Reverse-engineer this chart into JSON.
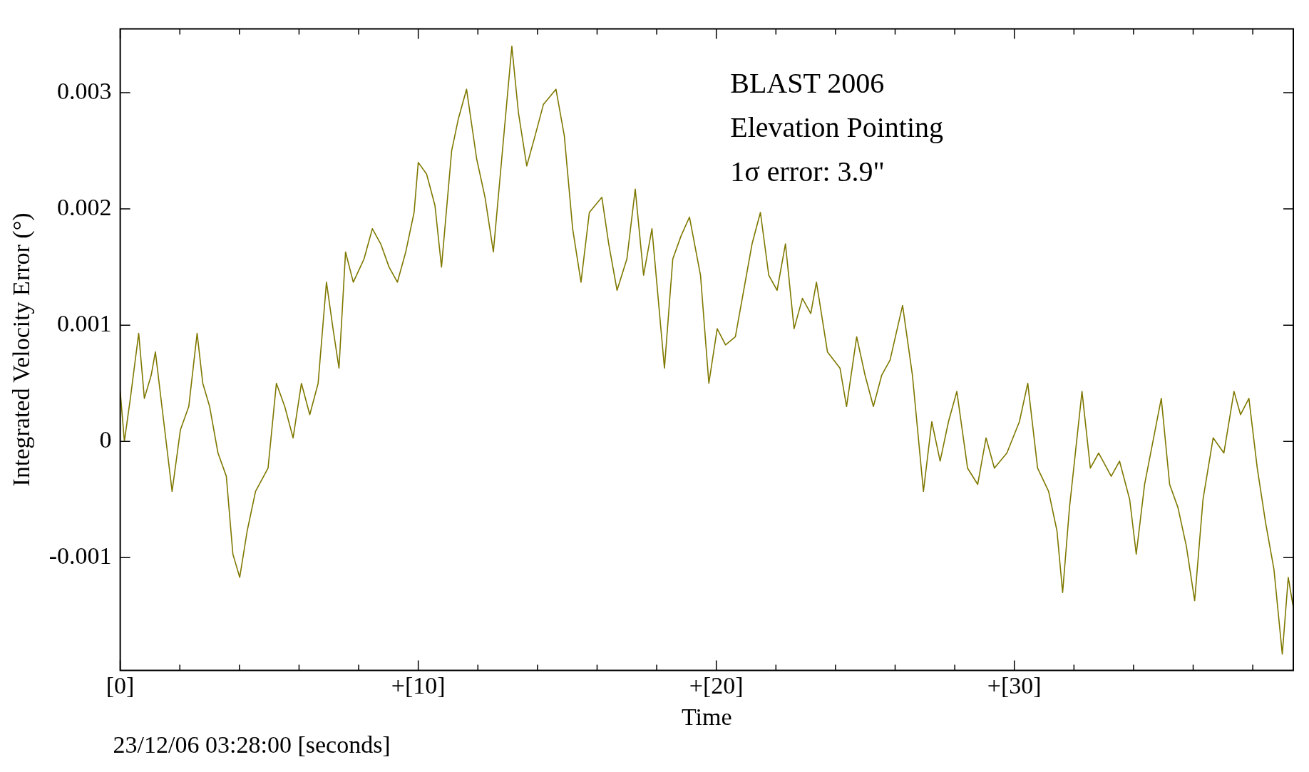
{
  "chart_data": {
    "type": "line",
    "xlabel": "Time",
    "ylabel": "Integrated Velocity Error (°)",
    "annotations": [
      "BLAST 2006",
      "Elevation Pointing",
      "1σ error: 3.9\"",
      "23/12/06 03:28:00 [seconds]"
    ],
    "xlim": [
      0,
      39.36
    ],
    "ylim": [
      -0.00197,
      0.00355
    ],
    "xticks": [
      {
        "value": 0,
        "label": "[0]"
      },
      {
        "value": 2,
        "label": null
      },
      {
        "value": 4,
        "label": null
      },
      {
        "value": 6,
        "label": null
      },
      {
        "value": 8,
        "label": null
      },
      {
        "value": 10,
        "label": "+[10]"
      },
      {
        "value": 12,
        "label": null
      },
      {
        "value": 14,
        "label": null
      },
      {
        "value": 16,
        "label": null
      },
      {
        "value": 18,
        "label": null
      },
      {
        "value": 20,
        "label": "+[20]"
      },
      {
        "value": 22,
        "label": null
      },
      {
        "value": 24,
        "label": null
      },
      {
        "value": 26,
        "label": null
      },
      {
        "value": 28,
        "label": null
      },
      {
        "value": 30,
        "label": "+[30]"
      },
      {
        "value": 32,
        "label": null
      },
      {
        "value": 34,
        "label": null
      },
      {
        "value": 36,
        "label": null
      },
      {
        "value": 38,
        "label": null
      }
    ],
    "yticks": [
      -0.001,
      0,
      0.001,
      0.002,
      0.003
    ],
    "grid": false,
    "legend": false,
    "marker": "none",
    "line_style": "solid",
    "series": [
      {
        "color": "#7f7800",
        "x": [
          0,
          0.14,
          0.34,
          0.62,
          0.81,
          1.04,
          1.18,
          1.46,
          1.74,
          2.02,
          2.3,
          2.58,
          2.77,
          3.0,
          3.28,
          3.56,
          3.78,
          4.01,
          4.26,
          4.54,
          4.96,
          5.24,
          5.52,
          5.8,
          6.08,
          6.36,
          6.64,
          6.92,
          7.14,
          7.34,
          7.56,
          7.82,
          8.18,
          8.46,
          8.74,
          9.02,
          9.3,
          9.58,
          9.86,
          10.0,
          10.28,
          10.56,
          10.78,
          11.12,
          11.34,
          11.62,
          11.96,
          12.24,
          12.52,
          12.8,
          13.14,
          13.36,
          13.64,
          13.92,
          14.2,
          14.62,
          14.9,
          15.18,
          15.46,
          15.74,
          16.16,
          16.39,
          16.67,
          17.0,
          17.28,
          17.56,
          17.84,
          18.26,
          18.54,
          18.82,
          19.1,
          19.47,
          19.75,
          20.03,
          20.31,
          20.64,
          20.92,
          21.2,
          21.48,
          21.76,
          22.04,
          22.32,
          22.61,
          22.89,
          23.17,
          23.36,
          23.73,
          24.15,
          24.37,
          24.71,
          24.99,
          25.27,
          25.55,
          25.83,
          26.25,
          26.58,
          26.95,
          27.23,
          27.51,
          27.79,
          28.07,
          28.43,
          28.77,
          29.05,
          29.33,
          29.75,
          30.17,
          30.45,
          30.78,
          31.15,
          31.43,
          31.62,
          31.85,
          32.27,
          32.55,
          32.83,
          33.25,
          33.53,
          33.87,
          34.09,
          34.37,
          34.93,
          35.21,
          35.49,
          35.77,
          36.05,
          36.33,
          36.67,
          37.03,
          37.37,
          37.59,
          37.87,
          38.15,
          38.43,
          38.71,
          38.99,
          39.19,
          39.36
        ],
        "values": [
          0.00043,
          0,
          0.00037,
          0.00093,
          0.00037,
          0.00057,
          0.00077,
          0.00017,
          -0.00043,
          0.0001,
          0.0003,
          0.00093,
          0.0005,
          0.0003,
          -0.0001,
          -0.0003,
          -0.00097,
          -0.00117,
          -0.00077,
          -0.00043,
          -0.00023,
          0.0005,
          0.0003,
          3e-05,
          0.0005,
          0.00023,
          0.0005,
          0.00137,
          0.00097,
          0.00063,
          0.00163,
          0.00137,
          0.00157,
          0.00183,
          0.0017,
          0.0015,
          0.00137,
          0.00163,
          0.00197,
          0.0024,
          0.0023,
          0.00203,
          0.0015,
          0.0025,
          0.00277,
          0.00303,
          0.00243,
          0.0021,
          0.00163,
          0.00243,
          0.0034,
          0.00283,
          0.00237,
          0.00263,
          0.0029,
          0.00303,
          0.00263,
          0.00183,
          0.00137,
          0.00197,
          0.0021,
          0.0017,
          0.0013,
          0.00157,
          0.00217,
          0.00143,
          0.00183,
          0.00063,
          0.00157,
          0.00177,
          0.00193,
          0.00143,
          0.0005,
          0.00097,
          0.00083,
          0.0009,
          0.0013,
          0.0017,
          0.00197,
          0.00143,
          0.0013,
          0.0017,
          0.00097,
          0.00123,
          0.0011,
          0.00137,
          0.00077,
          0.00063,
          0.0003,
          0.0009,
          0.00057,
          0.0003,
          0.00057,
          0.0007,
          0.00117,
          0.00057,
          -0.00043,
          0.00017,
          -0.00017,
          0.00017,
          0.00043,
          -0.00023,
          -0.00037,
          3e-05,
          -0.00023,
          -0.0001,
          0.00017,
          0.0005,
          -0.00023,
          -0.00043,
          -0.00077,
          -0.0013,
          -0.00057,
          0.00043,
          -0.00023,
          -0.0001,
          -0.0003,
          -0.00017,
          -0.0005,
          -0.00097,
          -0.00037,
          0.00037,
          -0.00037,
          -0.00057,
          -0.0009,
          -0.00137,
          -0.0005,
          3e-05,
          -0.0001,
          0.00043,
          0.00023,
          0.00037,
          -0.00023,
          -0.0007,
          -0.0011,
          -0.00183,
          -0.00117,
          -0.00143
        ]
      }
    ]
  }
}
